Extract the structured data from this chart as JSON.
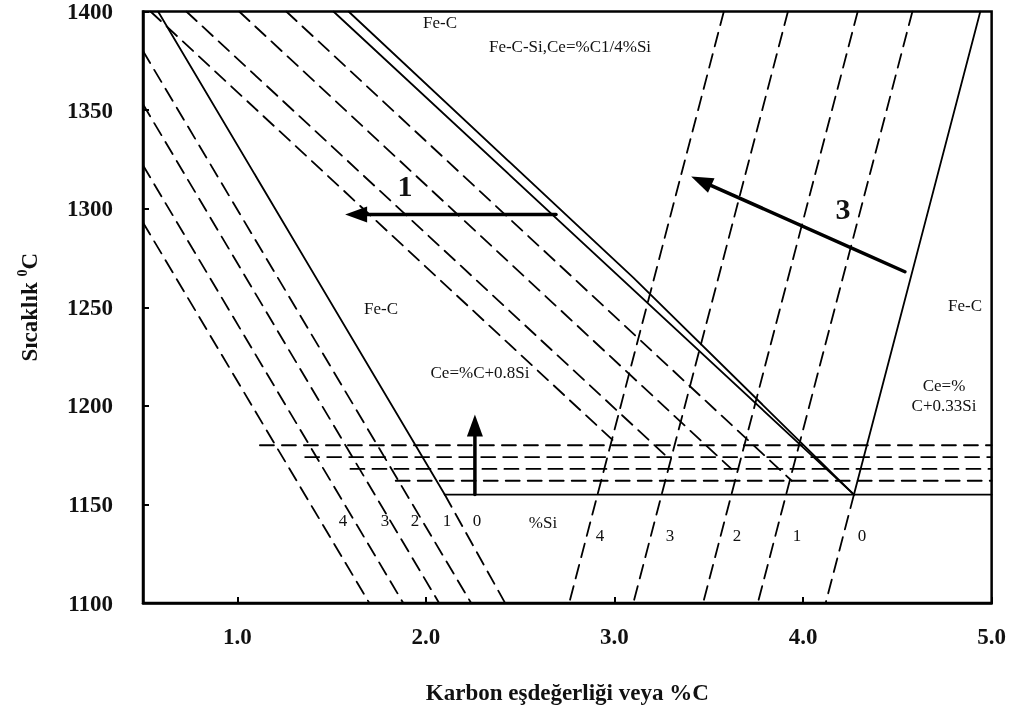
{
  "chart_data": {
    "type": "line",
    "xlabel": "Karbon eşdeğerliği veya %C",
    "ylabel": "Sıcaklık $^{0}$C",
    "xlim": [
      0.5,
      5.0
    ],
    "xticks": [
      {
        "value": 1,
        "label": "1.0"
      },
      {
        "value": 2,
        "label": "2.0"
      },
      {
        "value": 3,
        "label": "3.0"
      },
      {
        "value": 4,
        "label": "4.0"
      },
      {
        "value": 5,
        "label": "5.0"
      }
    ],
    "ylim": [
      1100,
      1400
    ],
    "yticks": [
      1100,
      1150,
      1200,
      1250,
      1300,
      1350,
      1400
    ],
    "grid": false,
    "legend": false,
    "marker": "none",
    "series": [
      {
        "x": [
          0.58,
          2.1
        ],
        "values": [
          1400,
          1155
        ],
        "color": "#000000",
        "line_style": "solid"
      },
      {
        "x": [
          2.1,
          2.42
        ],
        "values": [
          1155,
          1100
        ],
        "color": "#000000",
        "line_style": "dashed"
      },
      {
        "x": [
          2.1,
          5.0
        ],
        "values": [
          1155,
          1155
        ],
        "color": "#000000",
        "line_style": "solid"
      },
      {
        "x": [
          1.51,
          4.27
        ],
        "values": [
          1400,
          1155
        ],
        "color": "#000000",
        "line_style": "solid"
      },
      {
        "x": [
          1.59,
          3.1,
          4.27
        ],
        "values": [
          1400,
          1265,
          1155
        ],
        "color": "#000000",
        "line_style": "solid"
      },
      {
        "x": [
          4.94,
          4.27
        ],
        "values": [
          1400,
          1155
        ],
        "color": "#000000",
        "line_style": "solid"
      },
      {
        "x": [
          4.27,
          4.12
        ],
        "values": [
          1155,
          1100
        ],
        "color": "#000000",
        "line_style": "dashed"
      },
      {
        "x": [
          4.58,
          3.76
        ],
        "values": [
          1400,
          1100
        ],
        "color": "#000000",
        "line_style": "dashed"
      },
      {
        "x": [
          4.29,
          3.47
        ],
        "values": [
          1400,
          1100
        ],
        "color": "#000000",
        "line_style": "dashed"
      },
      {
        "x": [
          3.92,
          3.1
        ],
        "values": [
          1400,
          1100
        ],
        "color": "#000000",
        "line_style": "dashed"
      },
      {
        "x": [
          3.58,
          2.76
        ],
        "values": [
          1400,
          1100
        ],
        "color": "#000000",
        "line_style": "dashed"
      },
      {
        "x": [
          0.5,
          2.24
        ],
        "values": [
          1380,
          1100
        ],
        "color": "#000000",
        "line_style": "dashed"
      },
      {
        "x": [
          0.5,
          2.07
        ],
        "values": [
          1353,
          1100
        ],
        "color": "#000000",
        "line_style": "dashed"
      },
      {
        "x": [
          0.5,
          1.88
        ],
        "values": [
          1322,
          1100
        ],
        "color": "#000000",
        "line_style": "dashed"
      },
      {
        "x": [
          0.5,
          1.7
        ],
        "values": [
          1293,
          1100
        ],
        "color": "#000000",
        "line_style": "dashed"
      },
      {
        "x": [
          1.26,
          3.94
        ],
        "values": [
          1400,
          1162
        ],
        "color": "#000000",
        "line_style": "dashed"
      },
      {
        "x": [
          1.01,
          3.62
        ],
        "values": [
          1400,
          1168
        ],
        "color": "#000000",
        "line_style": "dashed"
      },
      {
        "x": [
          0.73,
          3.28
        ],
        "values": [
          1400,
          1174
        ],
        "color": "#000000",
        "line_style": "dashed"
      },
      {
        "x": [
          0.54,
          3.02
        ],
        "values": [
          1400,
          1180
        ],
        "color": "#000000",
        "line_style": "dashed"
      },
      {
        "x": [
          1.12,
          5.0
        ],
        "values": [
          1180,
          1180
        ],
        "color": "#000000",
        "line_style": "dashed"
      },
      {
        "x": [
          1.36,
          5.0
        ],
        "values": [
          1174,
          1174
        ],
        "color": "#000000",
        "line_style": "dashed"
      },
      {
        "x": [
          1.6,
          5.0
        ],
        "values": [
          1168,
          1168
        ],
        "color": "#000000",
        "line_style": "dashed"
      },
      {
        "x": [
          1.84,
          5.0
        ],
        "values": [
          1162,
          1162
        ],
        "color": "#000000",
        "line_style": "dashed"
      },
      {
        "x": [
          2.69,
          1.63
        ],
        "values": [
          1297,
          1297
        ],
        "color": "#000000",
        "line_style": "solid",
        "marker": "triangle"
      },
      {
        "x": [
          4.54,
          3.46
        ],
        "values": [
          1268,
          1314
        ],
        "color": "#000000",
        "line_style": "solid",
        "marker": "triangle"
      },
      {
        "x": [
          2.26,
          2.26
        ],
        "values": [
          1155,
          1190
        ],
        "color": "#000000",
        "line_style": "solid",
        "marker": "triangle"
      }
    ],
    "annotations": [
      "Fe-C",
      "Fe-C-Si,Ce=%C1/4%Si",
      "1",
      "3",
      "Fe-C",
      "Ce=%C+0.8Si",
      "Fe-C",
      "Ce=%\nC+0.33Si",
      "4",
      "3",
      "2",
      "1",
      "0",
      "%Si",
      "4",
      "3",
      "2",
      "1",
      "0"
    ]
  }
}
